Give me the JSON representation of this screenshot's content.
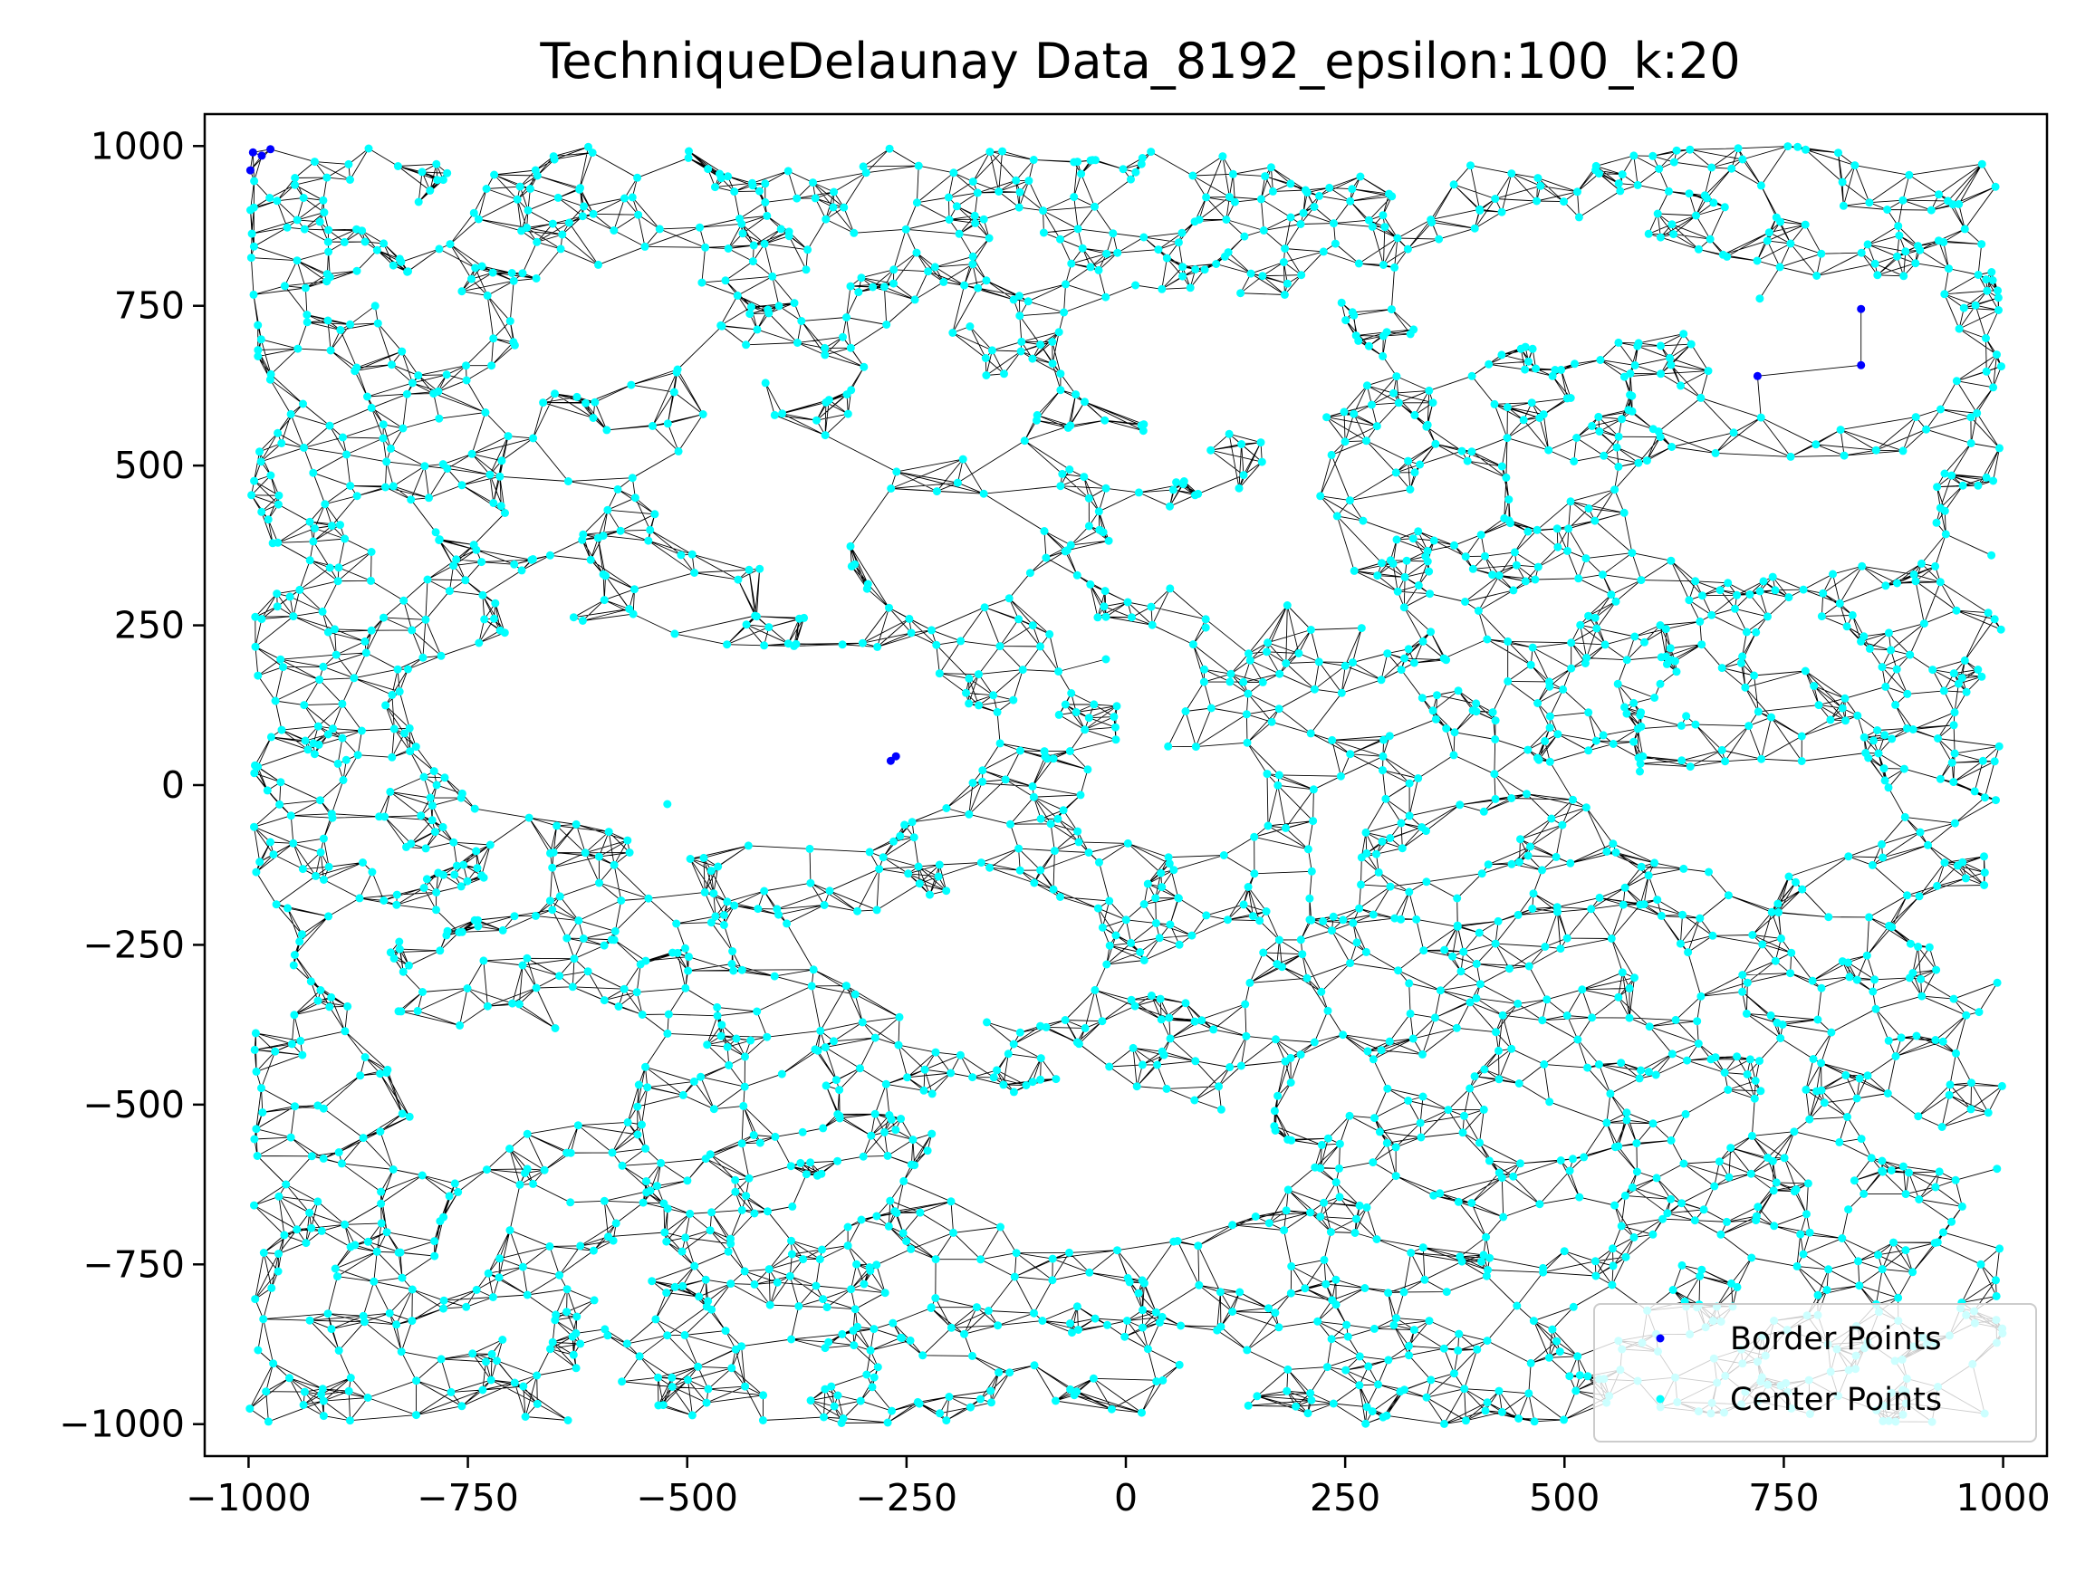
{
  "chart_data": {
    "type": "scatter",
    "title": "TechniqueDelaunay Data_8192_epsilon:100_k:20",
    "xlabel": "",
    "ylabel": "",
    "xlim": [
      -1050,
      1050
    ],
    "ylim": [
      -1050,
      1050
    ],
    "xticks": [
      -1000,
      -750,
      -500,
      -250,
      0,
      250,
      500,
      750,
      1000
    ],
    "yticks": [
      -1000,
      -750,
      -500,
      -250,
      0,
      250,
      500,
      750,
      1000
    ],
    "xtick_labels": [
      "−1000",
      "−750",
      "−500",
      "−250",
      "0",
      "250",
      "500",
      "750",
      "1000"
    ],
    "ytick_labels": [
      "−1000",
      "−750",
      "−500",
      "−250",
      "0",
      "250",
      "500",
      "750",
      "1000"
    ],
    "grid": false,
    "legend_position": "bottom-right",
    "colors": {
      "border": "#0000ff",
      "center": "#00ffff",
      "edges": "#000000"
    },
    "series": [
      {
        "name": "Border Points",
        "color": "#0000ff",
        "points": [
          [
            -995,
            990
          ],
          [
            -985,
            985
          ],
          [
            -975,
            995
          ],
          [
            -998,
            962
          ],
          [
            838,
            745
          ],
          [
            838,
            657
          ],
          [
            720,
            640
          ],
          [
            -268,
            38
          ],
          [
            -262,
            45
          ]
        ]
      },
      {
        "name": "Center Points",
        "color": "#00ffff",
        "count_estimate": 2600,
        "domain": {
          "x": [
            -1000,
            1000
          ],
          "y": [
            -1000,
            1000
          ]
        },
        "holes": [
          {
            "cx": -580,
            "cy": 720,
            "rx": 110,
            "ry": 85
          },
          {
            "cx": -230,
            "cy": 610,
            "rx": 70,
            "ry": 110
          },
          {
            "cx": 110,
            "cy": 660,
            "rx": 160,
            "ry": 110
          },
          {
            "cx": 500,
            "cy": 780,
            "rx": 200,
            "ry": 90
          },
          {
            "cx": 820,
            "cy": 680,
            "rx": 130,
            "ry": 120
          },
          {
            "cx": 750,
            "cy": 420,
            "rx": 170,
            "ry": 90
          },
          {
            "cx": 130,
            "cy": 370,
            "rx": 150,
            "ry": 70
          },
          {
            "cx": -410,
            "cy": 450,
            "rx": 130,
            "ry": 110
          },
          {
            "cx": -200,
            "cy": 370,
            "rx": 90,
            "ry": 90
          },
          {
            "cx": -620,
            "cy": 100,
            "rx": 190,
            "ry": 150
          },
          {
            "cx": -340,
            "cy": 70,
            "rx": 160,
            "ry": 150
          },
          {
            "cx": 60,
            "cy": -20,
            "rx": 110,
            "ry": 80
          },
          {
            "cx": 700,
            "cy": -50,
            "rx": 160,
            "ry": 80
          },
          {
            "cx": -180,
            "cy": -270,
            "rx": 150,
            "ry": 100
          },
          {
            "cx": -700,
            "cy": -460,
            "rx": 140,
            "ry": 80
          },
          {
            "cx": -20,
            "cy": -600,
            "rx": 180,
            "ry": 120
          }
        ]
      }
    ]
  }
}
